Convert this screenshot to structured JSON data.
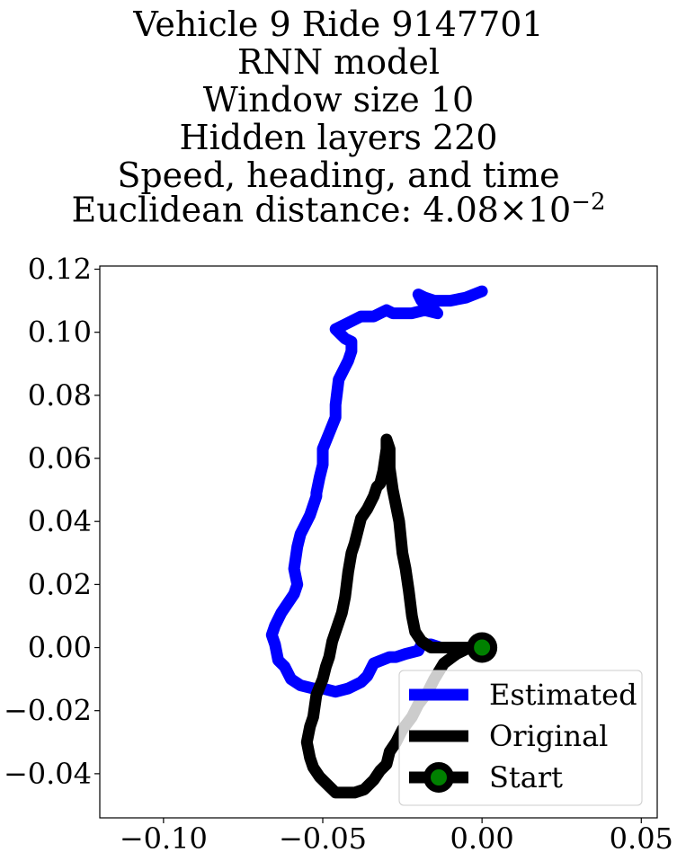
{
  "title_lines": [
    "Vehicle 9 Ride 9147701",
    "RNN model",
    "Window size 10",
    "Hidden layers 220",
    "Speed, heading, and time"
  ],
  "title_metric": {
    "prefix": "Euclidean distance: ",
    "mantissa": "4.08",
    "times": "×",
    "base": "10",
    "exponent": "−2"
  },
  "chart_data": {
    "type": "line",
    "title": "Vehicle 9 Ride 9147701 RNN model Window size 10 Hidden layers 220 Speed, heading, and time Euclidean distance: 4.08×10^-2",
    "xlabel": "",
    "ylabel": "",
    "xlim": [
      -0.12,
      0.055
    ],
    "ylim": [
      -0.054,
      0.121
    ],
    "xticks": [
      -0.1,
      -0.05,
      0.0,
      0.05
    ],
    "xtick_labels": [
      "−0.10",
      "−0.05",
      "0.00",
      "0.05"
    ],
    "yticks": [
      -0.04,
      -0.02,
      0.0,
      0.02,
      0.04,
      0.06,
      0.08,
      0.1,
      0.12
    ],
    "ytick_labels": [
      "−0.04",
      "−0.02",
      "0.00",
      "0.02",
      "0.04",
      "0.06",
      "0.08",
      "0.10",
      "0.12"
    ],
    "grid": false,
    "legend_position": "lower-right",
    "series": [
      {
        "name": "Estimated",
        "color": "#0000ff",
        "x": [
          0.0,
          -0.005,
          -0.01,
          -0.015,
          -0.018,
          -0.02,
          -0.019,
          -0.016,
          -0.014,
          -0.018,
          -0.022,
          -0.028,
          -0.03,
          -0.034,
          -0.038,
          -0.044,
          -0.046,
          -0.044,
          -0.043,
          -0.041,
          -0.041,
          -0.042,
          -0.045,
          -0.046,
          -0.046,
          -0.048,
          -0.05,
          -0.05,
          -0.051,
          -0.052,
          -0.052,
          -0.054,
          -0.055,
          -0.057,
          -0.058,
          -0.059,
          -0.058,
          -0.059,
          -0.061,
          -0.063,
          -0.065,
          -0.066,
          -0.065,
          -0.064,
          -0.062,
          -0.06,
          -0.057,
          -0.053,
          -0.05,
          -0.046,
          -0.042,
          -0.038,
          -0.036,
          -0.034,
          -0.029,
          -0.027,
          -0.024,
          -0.02,
          -0.019,
          -0.016,
          -0.013
        ],
        "y": [
          0.113,
          0.111,
          0.11,
          0.11,
          0.111,
          0.112,
          0.11,
          0.108,
          0.106,
          0.107,
          0.106,
          0.106,
          0.107,
          0.105,
          0.105,
          0.102,
          0.101,
          0.099,
          0.098,
          0.097,
          0.094,
          0.091,
          0.085,
          0.077,
          0.073,
          0.068,
          0.063,
          0.058,
          0.054,
          0.049,
          0.048,
          0.042,
          0.04,
          0.036,
          0.032,
          0.025,
          0.02,
          0.017,
          0.014,
          0.011,
          0.007,
          0.004,
          0.001,
          -0.004,
          -0.006,
          -0.01,
          -0.012,
          -0.013,
          -0.013,
          -0.014,
          -0.013,
          -0.011,
          -0.009,
          -0.005,
          -0.003,
          -0.003,
          -0.002,
          -0.001,
          0.001,
          0.001,
          0.0
        ]
      },
      {
        "name": "Original",
        "color": "#000000",
        "x": [
          0.0,
          -0.004,
          -0.008,
          -0.012,
          -0.016,
          -0.019,
          -0.021,
          -0.022,
          -0.023,
          -0.024,
          -0.025,
          -0.026,
          -0.028,
          -0.029,
          -0.029,
          -0.03,
          -0.03,
          -0.031,
          -0.032,
          -0.033,
          -0.034,
          -0.036,
          -0.038,
          -0.04,
          -0.041,
          -0.042,
          -0.043,
          -0.044,
          -0.045,
          -0.047,
          -0.048,
          -0.049,
          -0.05,
          -0.052,
          -0.053,
          -0.054,
          -0.055,
          -0.054,
          -0.053,
          -0.051,
          -0.049,
          -0.046,
          -0.043,
          -0.04,
          -0.037,
          -0.034,
          -0.032,
          -0.03,
          -0.029,
          -0.027,
          -0.025,
          -0.022,
          -0.02,
          -0.017,
          -0.015,
          -0.012,
          -0.008,
          -0.004,
          0.0
        ],
        "y": [
          0.0,
          0.0,
          0.0,
          0.0,
          0.0,
          0.002,
          0.005,
          0.01,
          0.018,
          0.025,
          0.03,
          0.04,
          0.05,
          0.057,
          0.063,
          0.066,
          0.063,
          0.056,
          0.052,
          0.051,
          0.048,
          0.044,
          0.041,
          0.033,
          0.03,
          0.024,
          0.016,
          0.011,
          0.008,
          0.002,
          -0.003,
          -0.006,
          -0.01,
          -0.015,
          -0.022,
          -0.025,
          -0.03,
          -0.035,
          -0.038,
          -0.041,
          -0.043,
          -0.046,
          -0.046,
          -0.046,
          -0.045,
          -0.042,
          -0.039,
          -0.037,
          -0.033,
          -0.03,
          -0.026,
          -0.022,
          -0.018,
          -0.014,
          -0.01,
          -0.005,
          -0.002,
          0.0,
          0.0
        ]
      },
      {
        "name": "Start",
        "color": "#000000",
        "marker_face": "#008000",
        "x": [
          0.0
        ],
        "y": [
          0.0
        ]
      }
    ]
  }
}
